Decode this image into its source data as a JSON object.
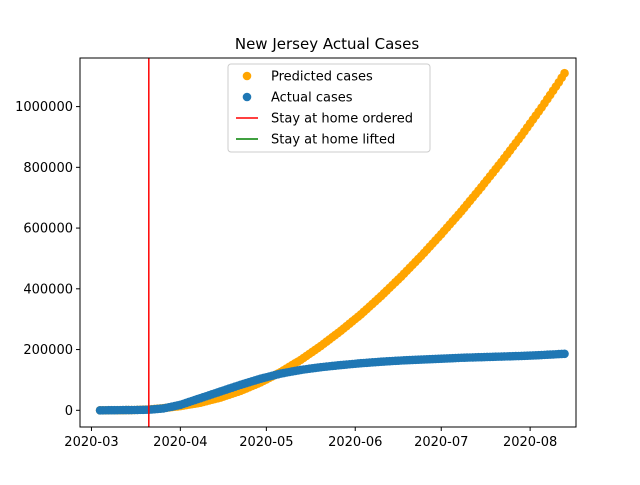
{
  "chart_data": {
    "type": "scatter",
    "title": "New Jersey Actual Cases",
    "xlabel": "",
    "ylabel": "",
    "x_axis_type": "date",
    "xlim": [
      "2020-02-26",
      "2020-08-17"
    ],
    "ylim": [
      -55000,
      1160000
    ],
    "x_ticks": [
      "2020-03",
      "2020-04",
      "2020-05",
      "2020-06",
      "2020-07",
      "2020-08"
    ],
    "y_ticks": [
      0,
      200000,
      400000,
      600000,
      800000,
      1000000
    ],
    "grid": false,
    "legend_position": "top-center",
    "legend": [
      {
        "label": "Predicted cases",
        "kind": "marker",
        "color": "#ffa500"
      },
      {
        "label": "Actual cases",
        "kind": "marker",
        "color": "#1f77b4"
      },
      {
        "label": "Stay at home ordered",
        "kind": "line",
        "color": "#ff0000"
      },
      {
        "label": "Stay at home lifted",
        "kind": "line",
        "color": "#008000"
      }
    ],
    "vertical_lines": [
      {
        "name": "Stay at home ordered",
        "date": "2020-03-21",
        "color": "#ff0000"
      }
    ],
    "series": [
      {
        "name": "Predicted cases",
        "color": "#ffa500",
        "points": [
          [
            "2020-03-04",
            0
          ],
          [
            "2020-03-10",
            200
          ],
          [
            "2020-03-16",
            1000
          ],
          [
            "2020-03-21",
            3000
          ],
          [
            "2020-03-26",
            7000
          ],
          [
            "2020-04-01",
            14000
          ],
          [
            "2020-04-08",
            25000
          ],
          [
            "2020-04-15",
            42000
          ],
          [
            "2020-04-22",
            64000
          ],
          [
            "2020-04-29",
            92000
          ],
          [
            "2020-05-06",
            126000
          ],
          [
            "2020-05-13",
            166000
          ],
          [
            "2020-05-20",
            212000
          ],
          [
            "2020-05-27",
            262000
          ],
          [
            "2020-06-03",
            316000
          ],
          [
            "2020-06-10",
            376000
          ],
          [
            "2020-06-17",
            440000
          ],
          [
            "2020-06-24",
            508000
          ],
          [
            "2020-07-01",
            580000
          ],
          [
            "2020-07-08",
            655000
          ],
          [
            "2020-07-15",
            735000
          ],
          [
            "2020-07-22",
            818000
          ],
          [
            "2020-07-29",
            905000
          ],
          [
            "2020-08-05",
            997000
          ],
          [
            "2020-08-11",
            1080000
          ],
          [
            "2020-08-13",
            1110000
          ]
        ]
      },
      {
        "name": "Actual cases",
        "color": "#1f77b4",
        "points": [
          [
            "2020-03-04",
            0
          ],
          [
            "2020-03-10",
            500
          ],
          [
            "2020-03-16",
            1000
          ],
          [
            "2020-03-21",
            2000
          ],
          [
            "2020-03-26",
            6000
          ],
          [
            "2020-04-01",
            18000
          ],
          [
            "2020-04-08",
            40000
          ],
          [
            "2020-04-15",
            62000
          ],
          [
            "2020-04-22",
            84000
          ],
          [
            "2020-04-29",
            104000
          ],
          [
            "2020-05-06",
            121000
          ],
          [
            "2020-05-13",
            133000
          ],
          [
            "2020-05-20",
            142000
          ],
          [
            "2020-05-27",
            149000
          ],
          [
            "2020-06-03",
            155000
          ],
          [
            "2020-06-10",
            160000
          ],
          [
            "2020-06-17",
            164000
          ],
          [
            "2020-06-24",
            167000
          ],
          [
            "2020-07-01",
            170000
          ],
          [
            "2020-07-08",
            173000
          ],
          [
            "2020-07-15",
            175000
          ],
          [
            "2020-07-22",
            177000
          ],
          [
            "2020-07-29",
            179000
          ],
          [
            "2020-08-05",
            182000
          ],
          [
            "2020-08-11",
            185000
          ],
          [
            "2020-08-13",
            186000
          ]
        ]
      }
    ]
  }
}
